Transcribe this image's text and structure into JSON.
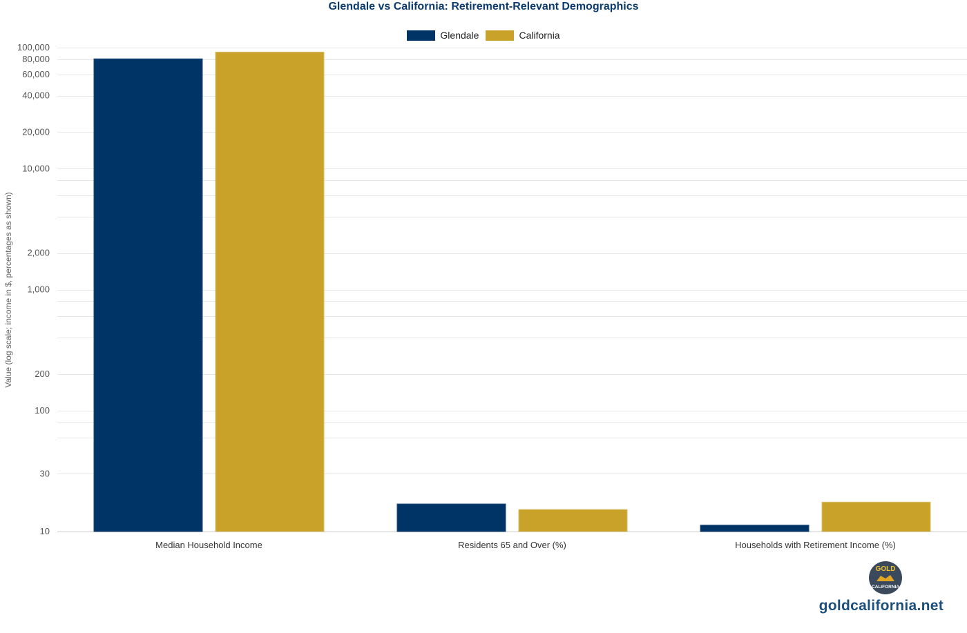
{
  "chart_data": {
    "type": "bar",
    "title": "Glendale vs California: Retirement-Relevant Demographics",
    "ylabel": "Value (log scale; income in $, percentages as shown)",
    "xlabel": "",
    "yscale": "log",
    "ylim": [
      10,
      100000
    ],
    "grid": true,
    "legend_position": "top-center",
    "categories": [
      "Median Household Income",
      "Residents 65 and Over (%)",
      "Households with Retirement Income (%)"
    ],
    "series": [
      {
        "name": "Glendale",
        "color": "#003366",
        "values": [
          80800,
          16.9,
          11.3
        ]
      },
      {
        "name": "California",
        "color": "#c9a22a",
        "values": [
          91900,
          15.2,
          17.5
        ]
      }
    ],
    "y_ticks": [
      {
        "value": 100000,
        "label": "100,000"
      },
      {
        "value": 80000,
        "label": "80,000"
      },
      {
        "value": 60000,
        "label": "60,000"
      },
      {
        "value": 40000,
        "label": "40,000"
      },
      {
        "value": 20000,
        "label": "20,000"
      },
      {
        "value": 10000,
        "label": "10,000"
      },
      {
        "value": 2000,
        "label": "2,000"
      },
      {
        "value": 1000,
        "label": "1,000"
      },
      {
        "value": 200,
        "label": "200"
      },
      {
        "value": 100,
        "label": "100"
      },
      {
        "value": 30,
        "label": "30"
      },
      {
        "value": 10,
        "label": "10"
      }
    ],
    "minor_gridlines": [
      8000,
      6000,
      4000,
      800,
      600,
      400,
      80,
      60
    ]
  },
  "logo": {
    "line1": "GOLD",
    "line2": "CALIFORNIA"
  },
  "watermark": "goldcalifornia.net"
}
